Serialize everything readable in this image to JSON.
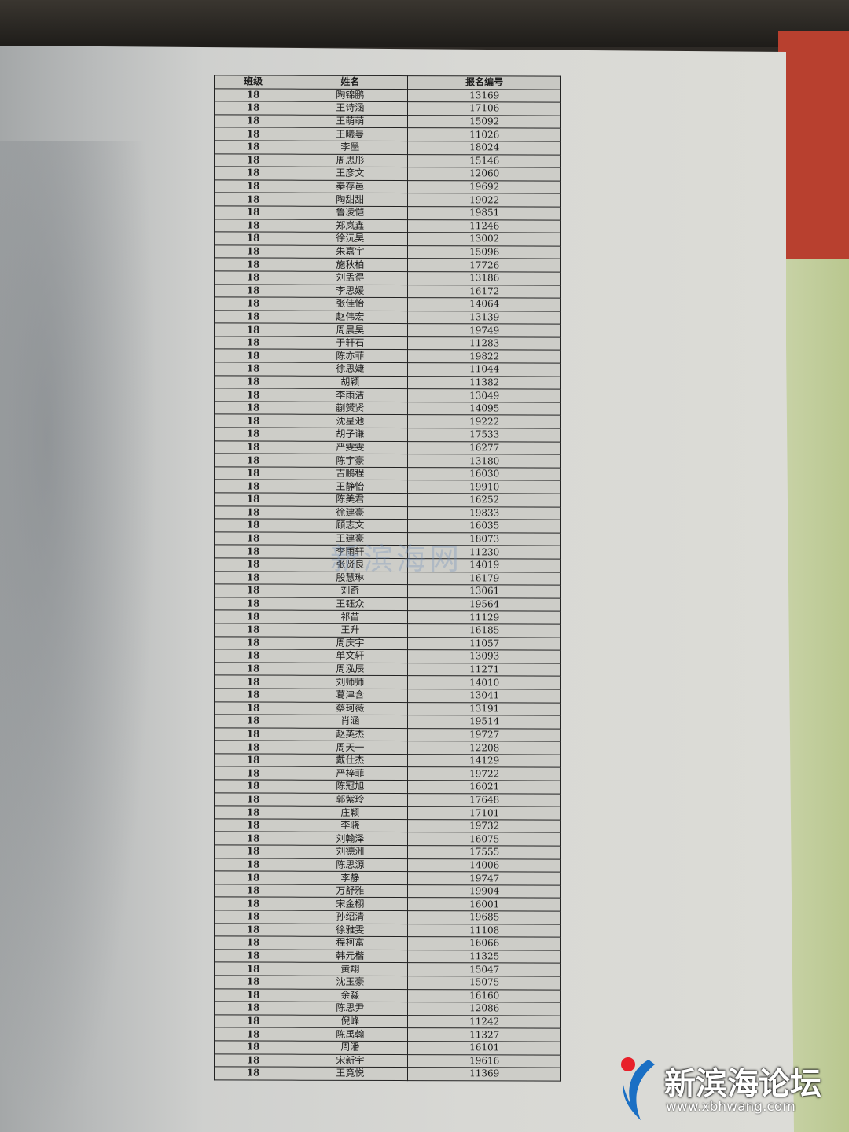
{
  "table": {
    "headers": [
      "班级",
      "姓名",
      "报名编号"
    ],
    "rows": [
      [
        "18",
        "陶锦鹏",
        "13169"
      ],
      [
        "18",
        "王诗涵",
        "17106"
      ],
      [
        "18",
        "王萌萌",
        "15092"
      ],
      [
        "18",
        "王曦曼",
        "11026"
      ],
      [
        "18",
        "李墨",
        "18024"
      ],
      [
        "18",
        "周思彤",
        "15146"
      ],
      [
        "18",
        "王彦文",
        "12060"
      ],
      [
        "18",
        "秦存邑",
        "19692"
      ],
      [
        "18",
        "陶甜甜",
        "19022"
      ],
      [
        "18",
        "鲁凌恺",
        "19851"
      ],
      [
        "18",
        "郑岚鑫",
        "11246"
      ],
      [
        "18",
        "徐沅昊",
        "13002"
      ],
      [
        "18",
        "朱嘉宇",
        "15096"
      ],
      [
        "18",
        "施秋柏",
        "17726"
      ],
      [
        "18",
        "刘孟得",
        "13186"
      ],
      [
        "18",
        "李思媛",
        "16172"
      ],
      [
        "18",
        "张佳怡",
        "14064"
      ],
      [
        "18",
        "赵伟宏",
        "13139"
      ],
      [
        "18",
        "周晨昊",
        "19749"
      ],
      [
        "18",
        "于轩石",
        "11283"
      ],
      [
        "18",
        "陈亦菲",
        "19822"
      ],
      [
        "18",
        "徐思婕",
        "11044"
      ],
      [
        "18",
        "胡颖",
        "11382"
      ],
      [
        "18",
        "李雨洁",
        "13049"
      ],
      [
        "18",
        "蒯赟贤",
        "14095"
      ],
      [
        "18",
        "沈星池",
        "19222"
      ],
      [
        "18",
        "胡子谦",
        "17533"
      ],
      [
        "18",
        "严雯雯",
        "16277"
      ],
      [
        "18",
        "陈宇豪",
        "13180"
      ],
      [
        "18",
        "吉鹏程",
        "16030"
      ],
      [
        "18",
        "王静怡",
        "19910"
      ],
      [
        "18",
        "陈美君",
        "16252"
      ],
      [
        "18",
        "徐建豪",
        "19833"
      ],
      [
        "18",
        "顾志文",
        "16035"
      ],
      [
        "18",
        "王建豪",
        "18073"
      ],
      [
        "18",
        "李雨轩",
        "11230"
      ],
      [
        "18",
        "张贤良",
        "14019"
      ],
      [
        "18",
        "殷慧琳",
        "16179"
      ],
      [
        "18",
        "刘奇",
        "13061"
      ],
      [
        "18",
        "王钰众",
        "19564"
      ],
      [
        "18",
        "祁苗",
        "11129"
      ],
      [
        "18",
        "王升",
        "16185"
      ],
      [
        "18",
        "周庆宇",
        "11057"
      ],
      [
        "18",
        "单文轩",
        "13093"
      ],
      [
        "18",
        "周泓辰",
        "11271"
      ],
      [
        "18",
        "刘师师",
        "14010"
      ],
      [
        "18",
        "葛津含",
        "13041"
      ],
      [
        "18",
        "蔡珂薇",
        "13191"
      ],
      [
        "18",
        "肖涵",
        "19514"
      ],
      [
        "18",
        "赵英杰",
        "19727"
      ],
      [
        "18",
        "周天一",
        "12208"
      ],
      [
        "18",
        "戴仕杰",
        "14129"
      ],
      [
        "18",
        "严梓菲",
        "19722"
      ],
      [
        "18",
        "陈冠旭",
        "16021"
      ],
      [
        "18",
        "郭紫玲",
        "17648"
      ],
      [
        "18",
        "庄颖",
        "17101"
      ],
      [
        "18",
        "李骁",
        "19732"
      ],
      [
        "18",
        "刘翰泽",
        "16075"
      ],
      [
        "18",
        "刘德洲",
        "17555"
      ],
      [
        "18",
        "陈思源",
        "14006"
      ],
      [
        "18",
        "李静",
        "19747"
      ],
      [
        "18",
        "万舒雅",
        "19904"
      ],
      [
        "18",
        "宋金栩",
        "16001"
      ],
      [
        "18",
        "孙绍清",
        "19685"
      ],
      [
        "18",
        "徐雅雯",
        "11108"
      ],
      [
        "18",
        "程柯富",
        "16066"
      ],
      [
        "18",
        "韩元楷",
        "11325"
      ],
      [
        "18",
        "黄翔",
        "15047"
      ],
      [
        "18",
        "沈玉豪",
        "15075"
      ],
      [
        "18",
        "余淼",
        "16160"
      ],
      [
        "18",
        "陈思尹",
        "12086"
      ],
      [
        "18",
        "倪峰",
        "11242"
      ],
      [
        "18",
        "陈禹翰",
        "11327"
      ],
      [
        "18",
        "周潘",
        "16101"
      ],
      [
        "18",
        "宋新宇",
        "19616"
      ],
      [
        "18",
        "王竟悦",
        "11369"
      ]
    ]
  },
  "watermark": {
    "center_text": "新滨海网",
    "logo_name": "新滨海论坛",
    "logo_url": "www.xbhwang.com",
    "logo_colors": {
      "red": "#e8202a",
      "blue": "#1a6fc4"
    }
  }
}
